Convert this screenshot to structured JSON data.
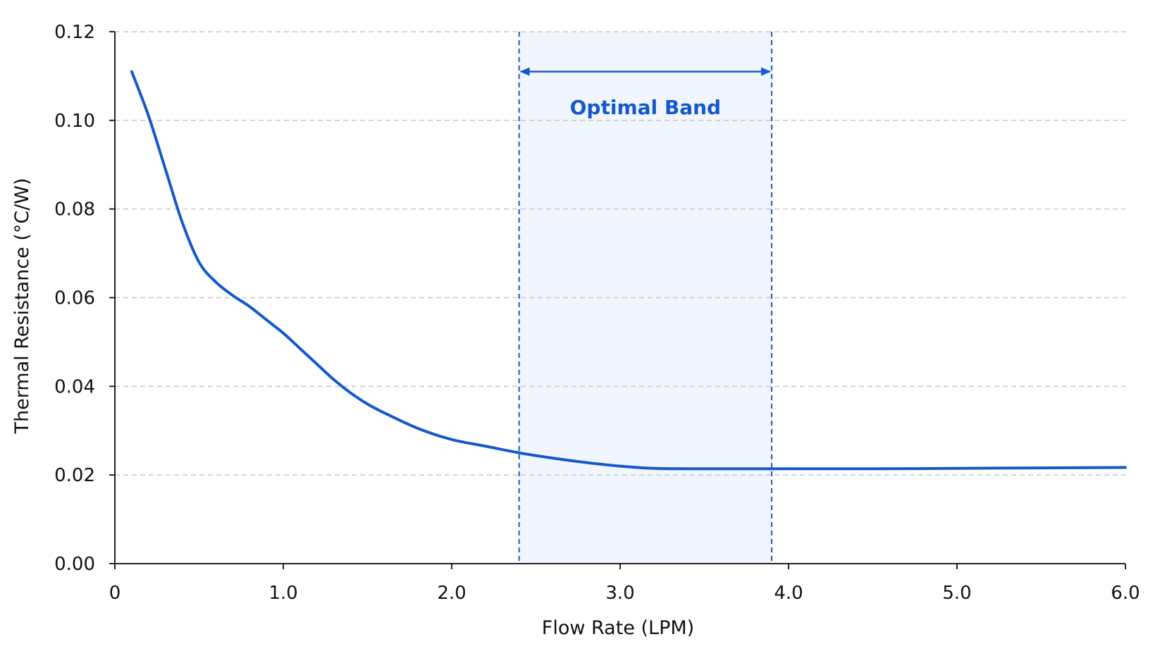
{
  "chart_data": {
    "type": "line",
    "title": "",
    "xlabel": "Flow Rate (LPM)",
    "ylabel": "Thermal Resistance (°C/W)",
    "xlim": [
      0,
      6.0
    ],
    "ylim": [
      0,
      0.12
    ],
    "x_ticks": [
      {
        "value": 0,
        "label": "0"
      },
      {
        "value": 1.0,
        "label": "1.0"
      },
      {
        "value": 2.0,
        "label": "2.0"
      },
      {
        "value": 3.0,
        "label": "3.0"
      },
      {
        "value": 4.0,
        "label": "4.0"
      },
      {
        "value": 5.0,
        "label": "5.0"
      },
      {
        "value": 6.0,
        "label": "6.0"
      }
    ],
    "y_ticks": [
      {
        "value": 0.0,
        "label": "0.00"
      },
      {
        "value": 0.02,
        "label": "0.02"
      },
      {
        "value": 0.04,
        "label": "0.04"
      },
      {
        "value": 0.06,
        "label": "0.06"
      },
      {
        "value": 0.08,
        "label": "0.08"
      },
      {
        "value": 0.1,
        "label": "0.10"
      },
      {
        "value": 0.12,
        "label": "0.12"
      }
    ],
    "grid": "horizontal dashed",
    "series": [
      {
        "color": "#1458cc",
        "x": [
          0.1,
          0.2,
          0.3,
          0.4,
          0.5,
          0.6,
          0.7,
          0.8,
          0.9,
          1.0,
          1.1,
          1.2,
          1.3,
          1.4,
          1.5,
          1.6,
          1.8,
          2.0,
          2.2,
          2.4,
          2.6,
          2.8,
          3.0,
          3.2,
          3.4,
          3.6,
          3.8,
          4.0,
          4.5,
          5.0,
          5.5,
          6.0
        ],
        "y": [
          0.111,
          0.101,
          0.089,
          0.077,
          0.068,
          0.0635,
          0.0605,
          0.058,
          0.055,
          0.052,
          0.0485,
          0.045,
          0.0415,
          0.0385,
          0.036,
          0.034,
          0.0305,
          0.028,
          0.0265,
          0.025,
          0.0238,
          0.0228,
          0.022,
          0.0215,
          0.0214,
          0.0214,
          0.0214,
          0.0214,
          0.0214,
          0.0215,
          0.0216,
          0.0217
        ]
      }
    ],
    "annotations": [
      {
        "type": "shaded-band",
        "x_start": 2.4,
        "x_end": 3.9,
        "label": "Optimal Band",
        "arrow_y": 0.111,
        "label_y": 0.103,
        "color": "#1458cc",
        "fill": "#f1f5fd"
      }
    ]
  }
}
